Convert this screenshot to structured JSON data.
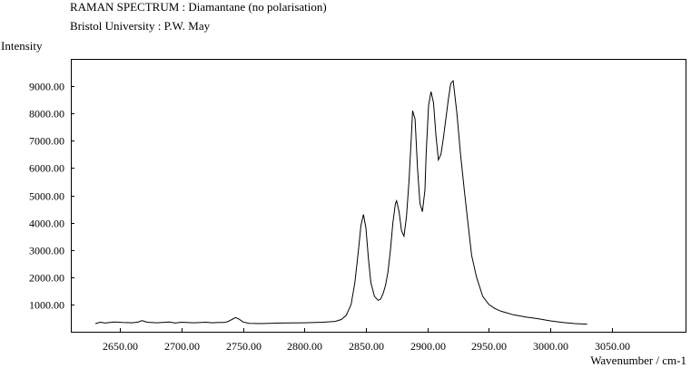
{
  "header": {
    "title": "RAMAN SPECTRUM : Diamantane (no polarisation)",
    "subtitle": "Bristol University : P.W. May"
  },
  "chart_data": {
    "type": "line",
    "title": "RAMAN SPECTRUM : Diamantane (no polarisation)",
    "subtitle": "Bristol University : P.W. May",
    "xlabel": "Wavenumber / cm-1",
    "ylabel": "Intensity",
    "xlim": [
      2610,
      3110
    ],
    "ylim": [
      0,
      10000
    ],
    "xticks": [
      2650,
      2700,
      2750,
      2800,
      2850,
      2900,
      2950,
      3000,
      3050
    ],
    "xtick_labels": [
      "2650.00",
      "2700.00",
      "2750.00",
      "2800.00",
      "2850.00",
      "2900.00",
      "2950.00",
      "3000.00",
      "3050.00"
    ],
    "yticks": [
      1000,
      2000,
      3000,
      4000,
      5000,
      6000,
      7000,
      8000,
      9000
    ],
    "ytick_labels": [
      "1000.00",
      "2000.00",
      "3000.00",
      "4000.00",
      "5000.00",
      "6000.00",
      "7000.00",
      "8000.00",
      "9000.00"
    ],
    "grid": false,
    "series": [
      {
        "x": [
          2630,
          2634,
          2638,
          2645,
          2652,
          2660,
          2665,
          2668,
          2672,
          2680,
          2690,
          2695,
          2700,
          2710,
          2720,
          2725,
          2730,
          2735,
          2738,
          2741,
          2744,
          2747,
          2750,
          2755,
          2765,
          2780,
          2800,
          2815,
          2825,
          2830,
          2834,
          2838,
          2841,
          2844,
          2846,
          2848,
          2850,
          2852,
          2854,
          2857,
          2860,
          2862,
          2864,
          2866,
          2868,
          2870,
          2872,
          2874,
          2875,
          2877,
          2879,
          2881,
          2883,
          2885,
          2887,
          2888,
          2890,
          2892,
          2894,
          2896,
          2898,
          2899,
          2901,
          2903,
          2905,
          2907,
          2909,
          2911,
          2913,
          2915,
          2917,
          2919,
          2921,
          2924,
          2927,
          2930,
          2933,
          2936,
          2940,
          2945,
          2950,
          2955,
          2960,
          2970,
          2980,
          2990,
          3000,
          3010,
          3020,
          3030
        ],
        "y": [
          300,
          350,
          320,
          360,
          340,
          330,
          360,
          410,
          350,
          330,
          360,
          320,
          350,
          330,
          350,
          330,
          340,
          340,
          380,
          450,
          520,
          460,
          360,
          310,
          300,
          320,
          330,
          350,
          380,
          450,
          600,
          1000,
          1800,
          3000,
          3900,
          4300,
          3800,
          2700,
          1800,
          1300,
          1150,
          1200,
          1400,
          1700,
          2200,
          3000,
          4000,
          4700,
          4800,
          4400,
          3700,
          3500,
          4200,
          5500,
          7200,
          8100,
          7800,
          6000,
          4700,
          4400,
          5200,
          6500,
          8300,
          8800,
          8400,
          7200,
          6300,
          6500,
          7100,
          7800,
          8500,
          9100,
          9200,
          8000,
          6500,
          5200,
          4000,
          2800,
          2000,
          1300,
          1000,
          850,
          750,
          620,
          540,
          480,
          400,
          340,
          300,
          280
        ]
      }
    ]
  }
}
